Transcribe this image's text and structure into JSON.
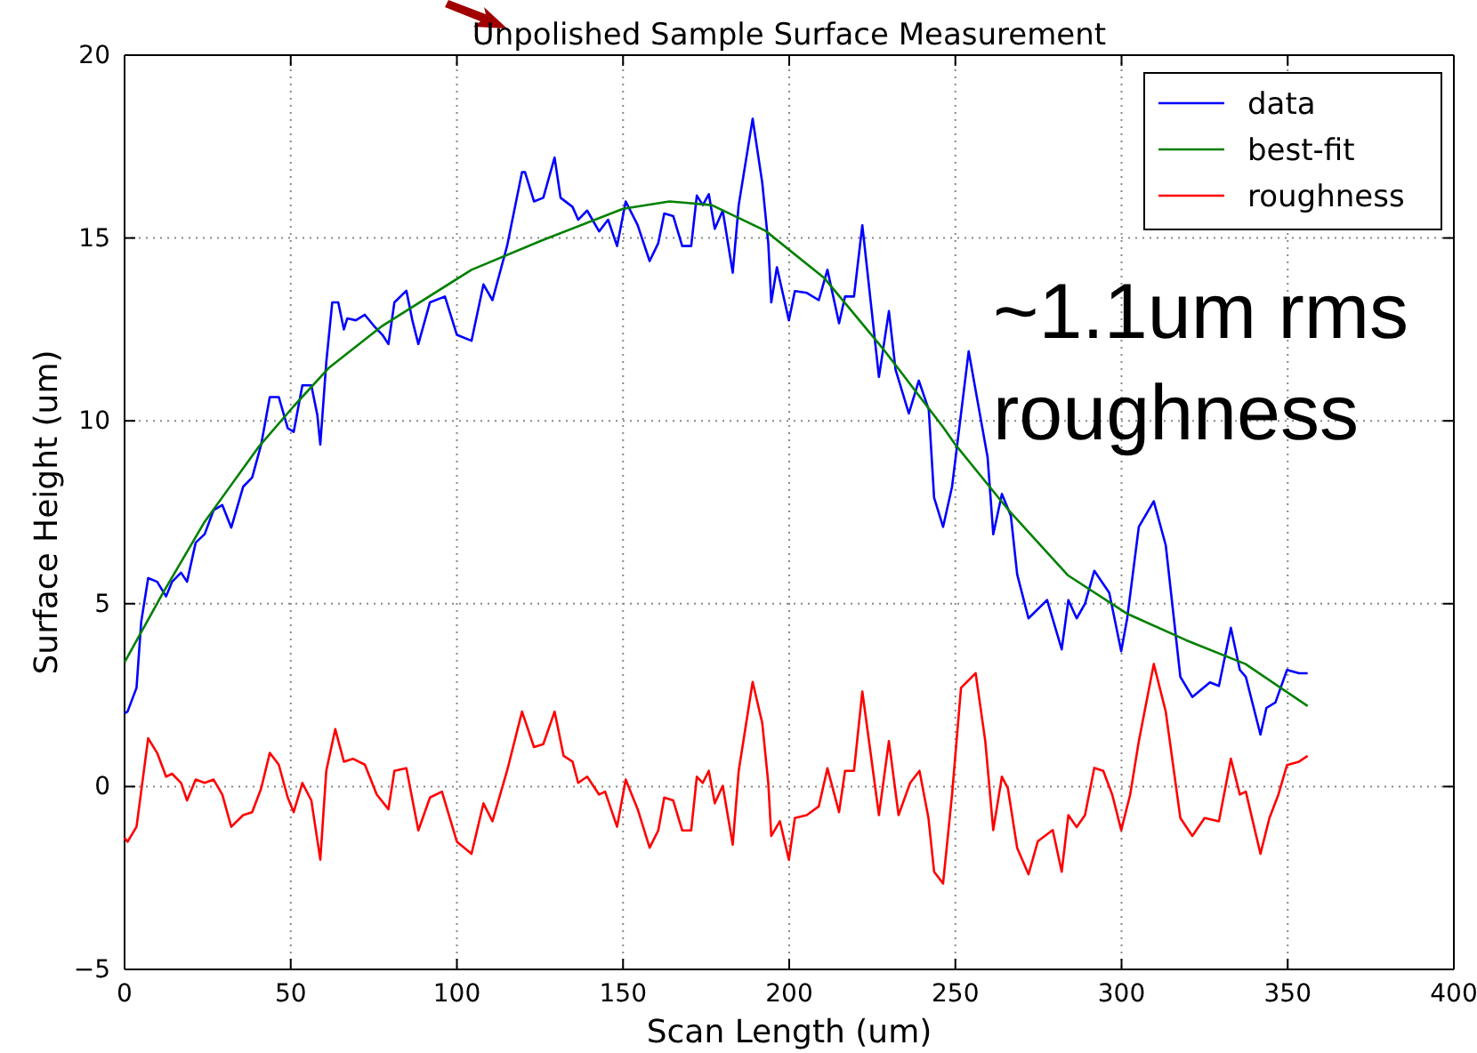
{
  "chart_data": {
    "type": "line",
    "title": "Unpolished Sample Surface Measurement",
    "xlabel": "Scan Length (um)",
    "ylabel": "Surface Height (um)",
    "xlim": [
      0,
      400
    ],
    "xticks": [
      0,
      50,
      100,
      150,
      200,
      250,
      300,
      350,
      400
    ],
    "ylim": [
      -5,
      20
    ],
    "yticks": [
      -5,
      0,
      5,
      10,
      15,
      20
    ],
    "grid": true,
    "legend": "top right",
    "line_style": "solid",
    "marker": "none",
    "annotations": [
      "~1.1um rms roughness"
    ],
    "series": [
      {
        "name": "data",
        "color": "#0000ff",
        "x": [
          0,
          0.9,
          3.6,
          5,
          7.1,
          9.8,
          12.5,
          14.3,
          17,
          18.8,
          21.4,
          24.1,
          26.8,
          29.4,
          32.1,
          35.7,
          38.4,
          41.1,
          43.7,
          46.4,
          49.1,
          50.9,
          53.5,
          56.2,
          58,
          58.9,
          60.7,
          62.5,
          64.3,
          66,
          67,
          69.6,
          72.3,
          75,
          77.6,
          79.4,
          81.2,
          84.8,
          86.6,
          88.4,
          91.9,
          96.4,
          100,
          104.4,
          108,
          110.7,
          115.1,
          119.6,
          120.5,
          123.2,
          126,
          129.4,
          131.2,
          134.8,
          136.5,
          139.2,
          142.8,
          145.5,
          148.2,
          150.8,
          154.4,
          158,
          160.6,
          162.4,
          165.1,
          167.8,
          170.5,
          172.2,
          174,
          175.8,
          177.6,
          180,
          183,
          184.8,
          189,
          191.9,
          193.7,
          194.6,
          196.3,
          199.9,
          201.7,
          205.3,
          208.9,
          211.5,
          215,
          216.8,
          219.5,
          222,
          227,
          230,
          232,
          236,
          239,
          242,
          243.6,
          246.3,
          249,
          254,
          259.7,
          261.4,
          264,
          266.7,
          268.6,
          272,
          277.6,
          282,
          284,
          286.5,
          289,
          291.8,
          296.3,
          299.9,
          301.7,
          305.2,
          309.7,
          313.3,
          317.7,
          321.3,
          326.6,
          329.3,
          332.9,
          335.6,
          337.4,
          341.8,
          343.6,
          346.3,
          349.8,
          353.4,
          356
        ],
        "values": [
          2.0,
          2.05,
          2.7,
          4.5,
          5.7,
          5.6,
          5.2,
          5.6,
          5.85,
          5.6,
          6.67,
          6.9,
          7.56,
          7.7,
          7.08,
          8.2,
          8.45,
          9.35,
          10.65,
          10.65,
          9.8,
          9.7,
          10.97,
          10.97,
          10.16,
          9.35,
          11.6,
          13.24,
          13.24,
          12.5,
          12.8,
          12.75,
          12.9,
          12.6,
          12.35,
          12.1,
          13.24,
          13.56,
          12.75,
          12.1,
          13.24,
          13.4,
          12.35,
          12.19,
          13.73,
          13.3,
          14.78,
          16.8,
          16.8,
          16.0,
          16.1,
          17.2,
          16.1,
          15.85,
          15.5,
          15.75,
          15.18,
          15.5,
          14.78,
          16.0,
          15.35,
          14.37,
          14.86,
          15.67,
          15.6,
          14.78,
          14.78,
          16.16,
          15.9,
          16.2,
          15.25,
          15.75,
          14.05,
          15.9,
          18.26,
          16.5,
          14.86,
          13.24,
          14.2,
          12.75,
          13.55,
          13.5,
          13.3,
          14.13,
          12.67,
          13.4,
          13.4,
          15.35,
          11.2,
          13.0,
          11.4,
          10.2,
          11.1,
          10.3,
          7.9,
          7.1,
          8.2,
          11.9,
          9.0,
          6.9,
          8.0,
          7.4,
          5.8,
          4.6,
          5.1,
          3.75,
          5.1,
          4.6,
          5.0,
          5.9,
          5.3,
          3.7,
          4.6,
          7.1,
          7.8,
          6.6,
          3.0,
          2.45,
          2.85,
          2.75,
          4.34,
          3.19,
          3.0,
          1.42,
          2.15,
          2.3,
          3.19,
          3.1,
          3.1
        ]
      },
      {
        "name": "best-fit",
        "color": "#008000",
        "x": [
          0,
          11.6,
          24.1,
          40.2,
          50.9,
          61.6,
          77.6,
          104.4,
          125.8,
          150,
          164,
          176.7,
          192.8,
          210.6,
          228.5,
          246.3,
          250,
          266,
          283.8,
          301.6,
          319.5,
          337.3,
          356
        ],
        "values": [
          3.4,
          5.3,
          7.24,
          9.27,
          10.4,
          11.46,
          12.6,
          14.13,
          14.94,
          15.8,
          16.0,
          15.9,
          15.2,
          13.9,
          11.94,
          9.83,
          9.35,
          7.56,
          5.78,
          4.73,
          4.0,
          3.35,
          2.2
        ]
      },
      {
        "name": "roughness",
        "color": "#ff0000",
        "x": [
          0,
          0.9,
          3.6,
          7.1,
          9.8,
          12.5,
          14.3,
          17,
          18.8,
          21.4,
          24.1,
          26.8,
          29.4,
          32.1,
          35.7,
          38.4,
          41.1,
          43.7,
          46.4,
          49.1,
          50.9,
          53.5,
          56.2,
          58.9,
          60.7,
          63.4,
          66,
          68.7,
          72.3,
          75.9,
          79.4,
          81.2,
          84.8,
          88.4,
          91.9,
          95.5,
          100,
          104.4,
          108,
          110.7,
          115.1,
          119.6,
          123.2,
          126,
          129.4,
          132.1,
          134.8,
          136.5,
          139.2,
          142.8,
          144.6,
          148.2,
          150.8,
          154.4,
          158,
          160.6,
          162.4,
          165.1,
          167.8,
          170.5,
          172.2,
          174,
          175.8,
          177.6,
          180,
          183,
          184.8,
          189,
          191.9,
          193.7,
          194.6,
          197.2,
          199.9,
          201.7,
          205.3,
          208.9,
          211.5,
          215,
          216.8,
          219.5,
          222,
          227,
          230,
          232.9,
          236.4,
          239.2,
          241.9,
          243.6,
          246.3,
          249,
          251.7,
          256.1,
          259,
          261.4,
          264,
          265.8,
          268.6,
          272,
          274.8,
          279.3,
          282,
          284,
          286.5,
          289,
          291.8,
          294.5,
          297.2,
          299.9,
          302.6,
          305.2,
          309.7,
          313.3,
          317.7,
          321.3,
          325,
          329.3,
          332.9,
          335.6,
          337.4,
          341.8,
          344.5,
          347.2,
          349.8,
          353.4,
          356
        ],
        "values": [
          -1.4,
          -1.51,
          -1.1,
          1.32,
          0.92,
          0.27,
          0.35,
          0.1,
          -0.38,
          0.19,
          0.1,
          0.19,
          -0.22,
          -1.1,
          -0.78,
          -0.7,
          -0.05,
          0.92,
          0.6,
          -0.3,
          -0.7,
          0.1,
          -0.38,
          -2.0,
          0.43,
          1.57,
          0.68,
          0.76,
          0.6,
          -0.22,
          -0.62,
          0.43,
          0.5,
          -1.2,
          -0.3,
          -0.14,
          -1.51,
          -1.84,
          -0.46,
          -0.95,
          0.43,
          2.05,
          1.08,
          1.16,
          2.05,
          0.84,
          0.68,
          0.1,
          0.27,
          -0.22,
          -0.14,
          -1.1,
          0.19,
          -0.62,
          -1.67,
          -1.2,
          -0.3,
          -0.38,
          -1.2,
          -1.2,
          0.27,
          0.1,
          0.43,
          -0.46,
          0.02,
          -1.59,
          0.43,
          2.86,
          1.73,
          0.1,
          -1.35,
          -0.95,
          -2.0,
          -0.86,
          -0.78,
          -0.54,
          0.5,
          -0.7,
          0.43,
          0.43,
          2.6,
          -0.78,
          1.24,
          -0.78,
          0.1,
          0.43,
          -0.86,
          -2.33,
          -2.65,
          -0.22,
          2.7,
          3.1,
          1.24,
          -1.19,
          0.27,
          -0.05,
          -1.68,
          -2.4,
          -1.5,
          -1.19,
          -2.33,
          -0.78,
          -1.11,
          -0.78,
          0.51,
          0.43,
          -0.22,
          -1.19,
          -0.22,
          1.24,
          3.35,
          2.05,
          -0.86,
          -1.35,
          -0.86,
          -0.95,
          0.76,
          -0.22,
          -0.14,
          -1.84,
          -0.86,
          -0.22,
          0.59,
          0.68,
          0.84
        ]
      }
    ]
  }
}
